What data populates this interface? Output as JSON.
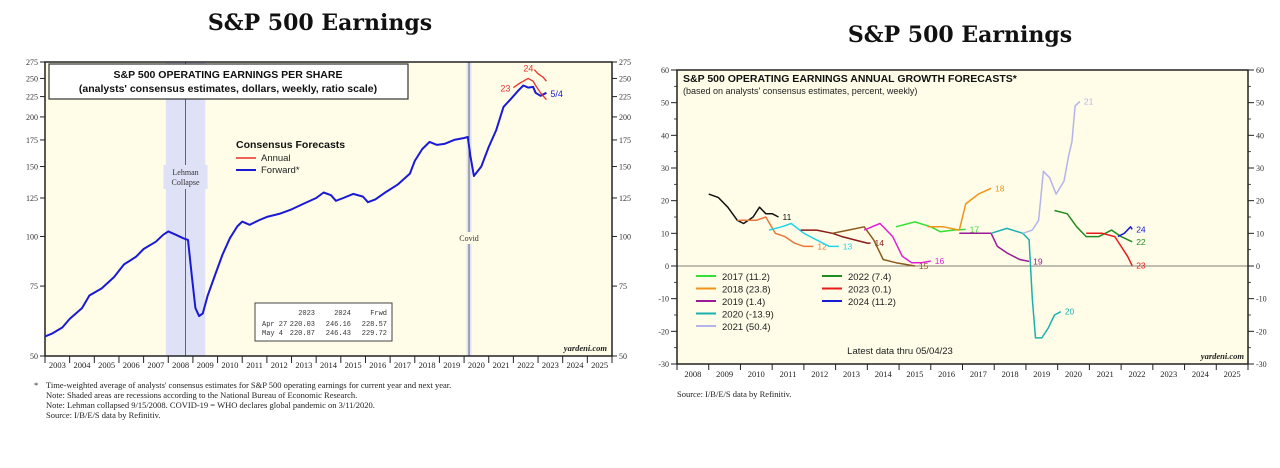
{
  "page_titles": [
    "S&P 500 Earnings",
    "S&P 500 Earnings"
  ],
  "colors": {
    "plot_bg": "#fffde8",
    "recession": "#dfe1f7",
    "annual": "#e8322a",
    "forward": "#1a1ad6"
  },
  "chart_data": [
    {
      "type": "line",
      "title": "S&P 500 OPERATING EARNINGS PER SHARE",
      "subtitle": "(analysts' consensus estimates, dollars, weekly, ratio scale)",
      "scale": "log",
      "ylim": [
        50,
        275
      ],
      "yticks": [
        50,
        75,
        100,
        125,
        150,
        175,
        200,
        225,
        250,
        275
      ],
      "xlim": [
        2003,
        2026
      ],
      "xtick_labels": [
        "2003",
        "2004",
        "2005",
        "2006",
        "2007",
        "2008",
        "2009",
        "2010",
        "2011",
        "2012",
        "2013",
        "2014",
        "2015",
        "2016",
        "2017",
        "2018",
        "2019",
        "2020",
        "2021",
        "2022",
        "2023",
        "2024",
        "2025"
      ],
      "legend_title": "Consensus Forecasts",
      "legend": [
        "Annual",
        "Forward*"
      ],
      "legend_placement": "upper-center",
      "recessions": [
        [
          2007.9,
          2009.5
        ],
        [
          2020.1,
          2020.3
        ]
      ],
      "vlines": [
        {
          "x": 2008.7,
          "label": [
            "Lehman",
            "Collapse"
          ]
        },
        {
          "x": 2020.2,
          "label": [
            "Covid"
          ]
        }
      ],
      "series": [
        {
          "name": "Forward*",
          "points": [
            [
              2003.0,
              56
            ],
            [
              2003.3,
              57
            ],
            [
              2003.7,
              59
            ],
            [
              2004.0,
              62
            ],
            [
              2004.5,
              66
            ],
            [
              2004.8,
              71
            ],
            [
              2005.3,
              74
            ],
            [
              2005.8,
              79
            ],
            [
              2006.2,
              85
            ],
            [
              2006.7,
              89
            ],
            [
              2007.0,
              93
            ],
            [
              2007.5,
              97
            ],
            [
              2007.8,
              101
            ],
            [
              2008.0,
              103
            ],
            [
              2008.3,
              101
            ],
            [
              2008.6,
              99
            ],
            [
              2008.8,
              98
            ],
            [
              2008.95,
              80
            ],
            [
              2009.1,
              66
            ],
            [
              2009.25,
              63
            ],
            [
              2009.4,
              64
            ],
            [
              2009.6,
              71
            ],
            [
              2009.9,
              80
            ],
            [
              2010.2,
              90
            ],
            [
              2010.5,
              99
            ],
            [
              2010.8,
              106
            ],
            [
              2011.0,
              109
            ],
            [
              2011.3,
              107
            ],
            [
              2011.7,
              110
            ],
            [
              2012.0,
              112
            ],
            [
              2012.5,
              114
            ],
            [
              2013.0,
              117
            ],
            [
              2013.5,
              121
            ],
            [
              2014.0,
              125
            ],
            [
              2014.3,
              129
            ],
            [
              2014.6,
              127
            ],
            [
              2014.8,
              123
            ],
            [
              2015.1,
              125
            ],
            [
              2015.5,
              128
            ],
            [
              2015.9,
              126
            ],
            [
              2016.1,
              122
            ],
            [
              2016.4,
              124
            ],
            [
              2016.8,
              129
            ],
            [
              2017.3,
              135
            ],
            [
              2017.8,
              144
            ],
            [
              2018.0,
              155
            ],
            [
              2018.3,
              166
            ],
            [
              2018.6,
              173
            ],
            [
              2018.9,
              170
            ],
            [
              2019.2,
              171
            ],
            [
              2019.6,
              175
            ],
            [
              2020.0,
              177
            ],
            [
              2020.15,
              178
            ],
            [
              2020.25,
              160
            ],
            [
              2020.4,
              142
            ],
            [
              2020.7,
              150
            ],
            [
              2021.0,
              168
            ],
            [
              2021.3,
              185
            ],
            [
              2021.6,
              212
            ],
            [
              2021.9,
              222
            ],
            [
              2022.2,
              233
            ],
            [
              2022.4,
              240
            ],
            [
              2022.6,
              237
            ],
            [
              2022.8,
              238
            ],
            [
              2022.9,
              230
            ],
            [
              2023.1,
              226
            ],
            [
              2023.34,
              230
            ]
          ],
          "end_label": "5/4"
        },
        {
          "name": "Annual 2023",
          "points": [
            [
              2022.0,
              237
            ],
            [
              2022.3,
              244
            ],
            [
              2022.6,
              250
            ],
            [
              2022.8,
              246
            ],
            [
              2022.9,
              240
            ],
            [
              2023.1,
              230
            ],
            [
              2023.34,
              221
            ]
          ],
          "end_label": "23"
        },
        {
          "name": "Annual 2024",
          "points": [
            [
              2022.85,
              263
            ],
            [
              2023.0,
              257
            ],
            [
              2023.2,
              252
            ],
            [
              2023.34,
              246
            ]
          ],
          "end_label": "24"
        }
      ],
      "table": {
        "headers": [
          "",
          "2023",
          "2024",
          "Frwd"
        ],
        "rows": [
          [
            "Apr 27",
            "220.03",
            "246.16",
            "228.57"
          ],
          [
            "May  4",
            "220.87",
            "246.43",
            "229.72"
          ]
        ]
      },
      "watermark": "yardeni.com",
      "notes": [
        "*",
        "Time-weighted average of analysts' consensus estimates for S&P 500 operating earnings for current year and next year.",
        "Note: Shaded areas are recessions according to the National Bureau of Economic Research.",
        "Note: Lehman collapsed 9/15/2008. COVID-19 = WHO declares global pandemic on 3/11/2020.",
        "Source: I/B/E/S data by Refinitiv."
      ]
    },
    {
      "type": "line",
      "title": "S&P 500 OPERATING EARNINGS ANNUAL GROWTH FORECASTS*",
      "subtitle": "(based on analysts' consensus estimates, percent, weekly)",
      "ylim": [
        -30,
        60
      ],
      "yticks": [
        -30,
        -20,
        -10,
        0,
        10,
        20,
        30,
        40,
        50,
        60
      ],
      "xlim": [
        2008,
        2026
      ],
      "xtick_labels": [
        "2008",
        "2009",
        "2010",
        "2011",
        "2012",
        "2013",
        "2014",
        "2015",
        "2016",
        "2017",
        "2018",
        "2019",
        "2020",
        "2021",
        "2022",
        "2023",
        "2024",
        "2025"
      ],
      "legend_placement": "lower-left",
      "annotation": "Latest data thru 05/04/23",
      "watermark": "yardeni.com",
      "series": [
        {
          "name": "2011",
          "color": "#111111",
          "label": "11",
          "points": [
            [
              2009.0,
              22
            ],
            [
              2009.3,
              21
            ],
            [
              2009.6,
              18
            ],
            [
              2009.9,
              14
            ],
            [
              2010.1,
              13
            ],
            [
              2010.4,
              15
            ],
            [
              2010.6,
              18
            ],
            [
              2010.8,
              16
            ],
            [
              2011.0,
              16
            ],
            [
              2011.2,
              15
            ]
          ]
        },
        {
          "name": "2012",
          "color": "#e8773a",
          "label": "12",
          "points": [
            [
              2009.9,
              14
            ],
            [
              2010.2,
              14
            ],
            [
              2010.5,
              14
            ],
            [
              2010.8,
              15
            ],
            [
              2011.1,
              10
            ],
            [
              2011.4,
              9
            ],
            [
              2011.7,
              7
            ],
            [
              2012.0,
              6
            ],
            [
              2012.3,
              6
            ]
          ]
        },
        {
          "name": "2013",
          "color": "#22d4e8",
          "label": "13",
          "points": [
            [
              2010.9,
              11
            ],
            [
              2011.3,
              12
            ],
            [
              2011.6,
              13
            ],
            [
              2012.0,
              10
            ],
            [
              2012.4,
              8
            ],
            [
              2012.8,
              6
            ],
            [
              2013.1,
              6
            ]
          ]
        },
        {
          "name": "2014",
          "color": "#8b1a1a",
          "label": "14",
          "points": [
            [
              2011.9,
              11
            ],
            [
              2012.4,
              11
            ],
            [
              2012.9,
              10
            ],
            [
              2013.2,
              9
            ],
            [
              2013.6,
              8
            ],
            [
              2014.0,
              7
            ],
            [
              2014.1,
              7
            ]
          ]
        },
        {
          "name": "2015",
          "color": "#8b5a1a",
          "label": "15",
          "points": [
            [
              2012.9,
              10
            ],
            [
              2013.4,
              11
            ],
            [
              2013.9,
              12
            ],
            [
              2014.2,
              8
            ],
            [
              2014.5,
              2
            ],
            [
              2014.9,
              1
            ],
            [
              2015.2,
              0.5
            ],
            [
              2015.5,
              0
            ]
          ]
        },
        {
          "name": "2016",
          "color": "#e020d8",
          "label": "16",
          "points": [
            [
              2013.9,
              11
            ],
            [
              2014.4,
              13
            ],
            [
              2014.8,
              9
            ],
            [
              2015.1,
              3
            ],
            [
              2015.4,
              1
            ],
            [
              2015.7,
              1
            ],
            [
              2016.0,
              1.5
            ]
          ]
        },
        {
          "name": "2017",
          "color": "#33e033",
          "label": "17",
          "points": [
            [
              2014.9,
              12
            ],
            [
              2015.5,
              13.5
            ],
            [
              2016.0,
              12
            ],
            [
              2016.3,
              10.5
            ],
            [
              2016.7,
              11
            ],
            [
              2017.1,
              11.2
            ]
          ]
        },
        {
          "name": "2018",
          "color": "#f0951a",
          "label": "18",
          "points": [
            [
              2015.9,
              12
            ],
            [
              2016.4,
              12
            ],
            [
              2016.9,
              11
            ],
            [
              2017.1,
              19
            ],
            [
              2017.5,
              22
            ],
            [
              2017.9,
              23.8
            ]
          ]
        },
        {
          "name": "2019",
          "color": "#9a1a9a",
          "label": "19",
          "points": [
            [
              2016.9,
              10
            ],
            [
              2017.4,
              10
            ],
            [
              2017.9,
              10
            ],
            [
              2018.1,
              6
            ],
            [
              2018.4,
              4
            ],
            [
              2018.8,
              2
            ],
            [
              2019.1,
              1.4
            ]
          ]
        },
        {
          "name": "2020",
          "color": "#1ab0b0",
          "label": "20",
          "points": [
            [
              2017.9,
              10
            ],
            [
              2018.4,
              11.5
            ],
            [
              2018.9,
              10
            ],
            [
              2019.1,
              8
            ],
            [
              2019.2,
              -10
            ],
            [
              2019.3,
              -22
            ],
            [
              2019.5,
              -22
            ],
            [
              2019.7,
              -19
            ],
            [
              2019.9,
              -15
            ],
            [
              2020.1,
              -14
            ]
          ]
        },
        {
          "name": "2021",
          "color": "#b4b4ec",
          "label": "21",
          "points": [
            [
              2018.9,
              10
            ],
            [
              2019.2,
              11
            ],
            [
              2019.4,
              14
            ],
            [
              2019.55,
              29
            ],
            [
              2019.75,
              27
            ],
            [
              2019.95,
              22
            ],
            [
              2020.2,
              26
            ],
            [
              2020.35,
              34
            ],
            [
              2020.45,
              38
            ],
            [
              2020.55,
              49
            ],
            [
              2020.7,
              50.4
            ]
          ]
        },
        {
          "name": "2022",
          "color": "#228b22",
          "label": "22",
          "points": [
            [
              2019.9,
              17
            ],
            [
              2020.3,
              16
            ],
            [
              2020.6,
              12
            ],
            [
              2020.9,
              9
            ],
            [
              2021.3,
              9
            ],
            [
              2021.7,
              11
            ],
            [
              2022.0,
              9
            ],
            [
              2022.35,
              7.4
            ]
          ]
        },
        {
          "name": "2023",
          "color": "#e81a1a",
          "label": "23",
          "points": [
            [
              2020.9,
              10
            ],
            [
              2021.4,
              10
            ],
            [
              2021.8,
              9
            ],
            [
              2022.0,
              6
            ],
            [
              2022.2,
              3
            ],
            [
              2022.35,
              0.1
            ]
          ]
        },
        {
          "name": "2024",
          "color": "#1a1ad6",
          "label": "24",
          "points": [
            [
              2021.9,
              9
            ],
            [
              2022.1,
              10
            ],
            [
              2022.3,
              12
            ],
            [
              2022.35,
              11.2
            ]
          ]
        }
      ],
      "legend": [
        {
          "label": "2017 (11.2)",
          "color": "#33e033"
        },
        {
          "label": "2018 (23.8)",
          "color": "#f0951a"
        },
        {
          "label": "2019 (1.4)",
          "color": "#9a1a9a"
        },
        {
          "label": "2020 (-13.9)",
          "color": "#1ab0b0"
        },
        {
          "label": "2021 (50.4)",
          "color": "#b4b4ec"
        },
        {
          "label": "2022 (7.4)",
          "color": "#228b22"
        },
        {
          "label": "2023 (0.1)",
          "color": "#e81a1a"
        },
        {
          "label": "2024 (11.2)",
          "color": "#1a1ad6"
        }
      ],
      "notes": [
        "Source: I/B/E/S data by Refinitiv."
      ]
    }
  ]
}
